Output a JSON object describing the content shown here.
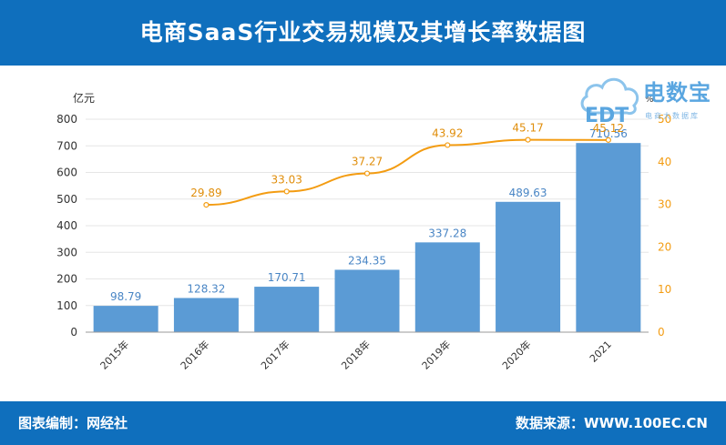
{
  "header": {
    "title": "电商SaaS行业交易规模及其增长率数据图"
  },
  "footer": {
    "left_text": "图表编制：网经社",
    "right_text": "数据来源：WWW.100EC.CN"
  },
  "logo": {
    "brand": "电数宝",
    "mark": "EDT",
    "tagline": "电商大数据库",
    "icon": "cloud-logo-icon"
  },
  "chart_data": {
    "type": "bar",
    "categories": [
      "2015年",
      "2016年",
      "2017年",
      "2018年",
      "2019年",
      "2020年",
      "2021"
    ],
    "series": [
      {
        "type": "bar",
        "axis": "left",
        "values": [
          98.79,
          128.32,
          170.71,
          234.35,
          337.28,
          489.63,
          710.56
        ],
        "labels": [
          "98.79",
          "128.32",
          "170.71",
          "234.35",
          "337.28",
          "489.63",
          "710.56"
        ],
        "color": "#5b9bd5"
      },
      {
        "type": "line",
        "axis": "right",
        "values": [
          null,
          29.89,
          33.03,
          37.27,
          43.92,
          45.17,
          45.12
        ],
        "labels": [
          "",
          "29.89",
          "33.03",
          "37.27",
          "43.92",
          "45.17",
          "45.12"
        ],
        "color": "#f39c12"
      }
    ],
    "ylabel": "亿元",
    "ylabel_right": "%",
    "ylim": [
      0,
      800
    ],
    "y_ticks": [
      "0",
      "100",
      "200",
      "300",
      "400",
      "500",
      "600",
      "700",
      "800"
    ],
    "ylim_right": [
      0,
      50
    ],
    "y_ticks_right": [
      "0",
      "10",
      "20",
      "30",
      "40",
      "50"
    ],
    "grid": true
  }
}
